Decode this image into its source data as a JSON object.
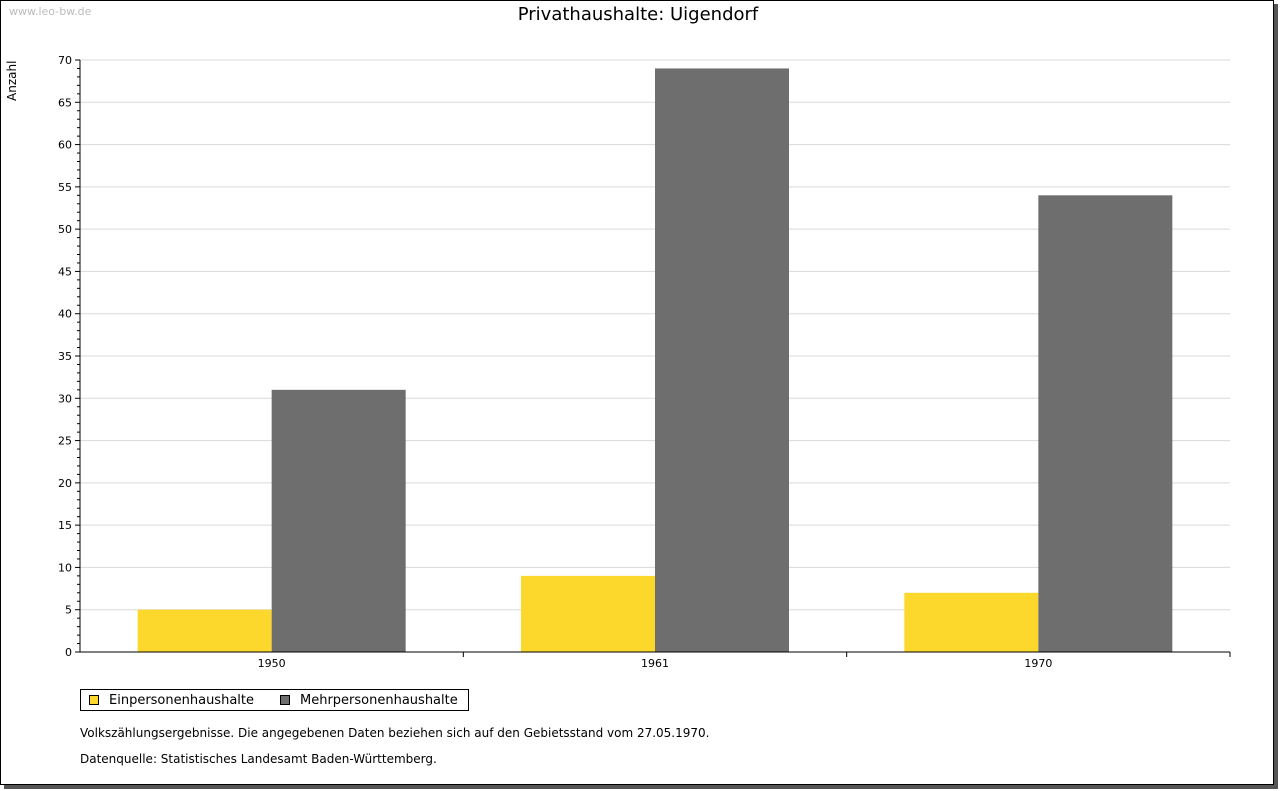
{
  "watermark": "www.leo-bw.de",
  "colors": {
    "einpersonen": "#fcd72c",
    "mehrpersonen": "#6e6e6e",
    "grid": "#d9d9d9"
  },
  "chart_data": {
    "type": "bar",
    "title": "Privathaushalte: Uigendorf",
    "ylabel": "Anzahl",
    "xlabel": "",
    "ylim": [
      0,
      70
    ],
    "ytick_step": 5,
    "grid": true,
    "legend_position": "bottom-left",
    "categories": [
      "1950",
      "1961",
      "1970"
    ],
    "series": [
      {
        "name": "Einpersonenhaushalte",
        "values": [
          5,
          9,
          7
        ]
      },
      {
        "name": "Mehrpersonenhaushalte",
        "values": [
          31,
          69,
          54
        ]
      }
    ]
  },
  "notes": [
    "Volkszählungsergebnisse. Die angegebenen Daten beziehen sich auf den Gebietsstand vom 27.05.1970.",
    "Datenquelle: Statistisches Landesamt Baden-Württemberg."
  ]
}
